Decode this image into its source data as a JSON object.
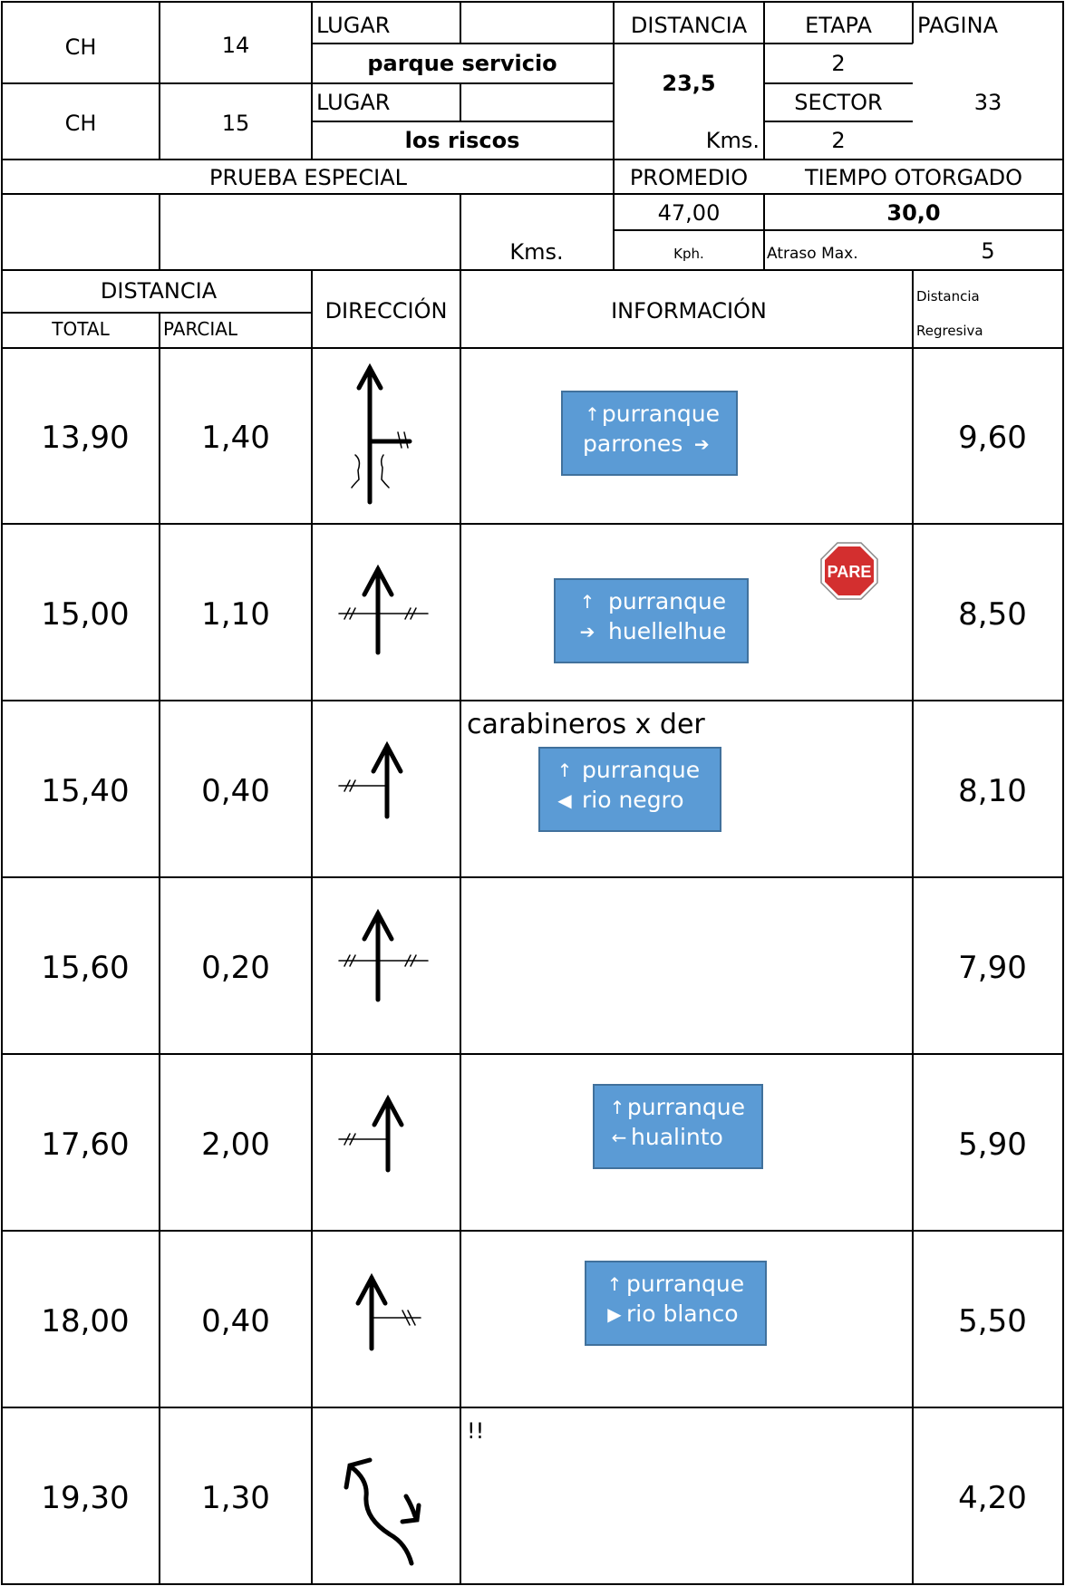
{
  "header": {
    "ch_label": "CH",
    "ch_start": "14",
    "ch_end": "15",
    "lugar_label": "LUGAR",
    "lugar_start": "parque servicio",
    "lugar_end": "los riscos",
    "distancia_label": "DISTANCIA",
    "distancia_value": "23,5",
    "distancia_unit": "Kms.",
    "etapa_label": "ETAPA",
    "etapa_value": "2",
    "sector_label": "SECTOR",
    "sector_value": "2",
    "pagina_label": "PAGINA",
    "pagina_value": "33",
    "prueba_label": "PRUEBA ESPECIAL",
    "prueba_unit": "Kms.",
    "promedio_label": "PROMEDIO",
    "promedio_value": "47,00",
    "promedio_unit": "Kph.",
    "tiempo_label": "TIEMPO OTORGADO",
    "tiempo_value": "30,0",
    "atraso_label": "Atraso Max.",
    "atraso_value": "5"
  },
  "columns": {
    "distancia": "DISTANCIA",
    "total": "TOTAL",
    "parcial": "PARCIAL",
    "direccion": "DIRECCIÓN",
    "informacion": "INFORMACIÓN",
    "regresiva_1": "Distancia",
    "regresiva_2": "Regresiva"
  },
  "rows": [
    {
      "total": "13,90",
      "parcial": "1,40",
      "regresiva": "9,60",
      "diagram": "t-junction-right-icon",
      "sign": {
        "lines": [
          {
            "icon": "arrow-up",
            "text": "purranque"
          },
          {
            "icon": "arrow-right",
            "text": "parrones",
            "icon_after": true
          }
        ]
      }
    },
    {
      "total": "15,00",
      "parcial": "1,10",
      "regresiva": "8,50",
      "diagram": "crossroads-straight-icon",
      "stop": "PARE",
      "sign": {
        "lines": [
          {
            "icon": "arrow-up",
            "text": "purranque"
          },
          {
            "icon": "arrow-right",
            "text": "huellelhue"
          }
        ]
      }
    },
    {
      "total": "15,40",
      "parcial": "0,40",
      "regresiva": "8,10",
      "diagram": "left-junction-straight-icon",
      "note": "carabineros x der",
      "sign": {
        "lines": [
          {
            "icon": "arrow-up",
            "text": "purranque"
          },
          {
            "icon": "arrow-left",
            "text": "rio negro"
          }
        ]
      }
    },
    {
      "total": "15,60",
      "parcial": "0,20",
      "regresiva": "7,90",
      "diagram": "crossroads-straight-icon"
    },
    {
      "total": "17,60",
      "parcial": "2,00",
      "regresiva": "5,90",
      "diagram": "left-junction-straight-icon",
      "sign": {
        "lines": [
          {
            "icon": "arrow-up",
            "text": "purranque"
          },
          {
            "icon": "arrow-left",
            "text": "hualinto"
          }
        ]
      }
    },
    {
      "total": "18,00",
      "parcial": "0,40",
      "regresiva": "5,50",
      "diagram": "right-junction-straight-icon",
      "sign": {
        "lines": [
          {
            "icon": "arrow-up",
            "text": "purranque"
          },
          {
            "icon": "arrow-right",
            "text": "rio blanco"
          }
        ]
      }
    },
    {
      "total": "19,30",
      "parcial": "1,30",
      "regresiva": "4,20",
      "diagram": "fork-keep-left-icon",
      "note": "!!"
    }
  ],
  "colors": {
    "sign_fill": "#5b9bd5",
    "sign_border": "#41719c",
    "stop_red": "#d32f2f"
  }
}
